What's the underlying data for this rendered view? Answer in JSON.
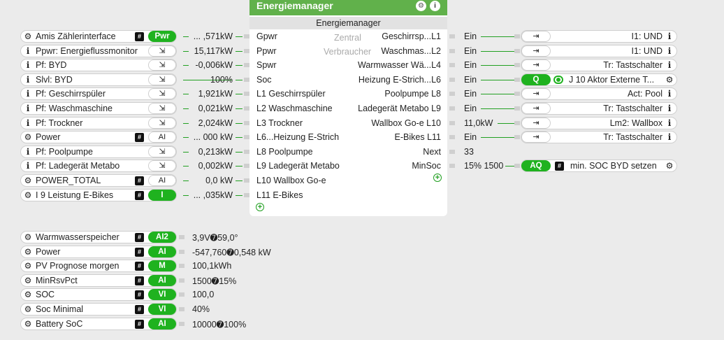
{
  "module": {
    "title": "Energiemanager",
    "subtitle": "Energiemanager",
    "inputs": [
      "Gpwr",
      "Ppwr",
      "Spwr",
      "Soc",
      "L1 Geschirrspüler",
      "L2 Waschmaschine",
      "L3 Trockner",
      "L6...Heizung  E-Strich",
      "L8 Poolpumpe",
      "L9 Ladegerät Metabo",
      "L10 Wallbox Go-e",
      "L11 E-Bikes"
    ],
    "ghost_labels": [
      "Zentral",
      "Verbraucher"
    ],
    "outputs": [
      "Geschirrsp...L1",
      "Waschmas...L2",
      "Warmwasser Wä...L4",
      "Heizung  E-Strich...L6",
      "Poolpumpe L8",
      "Ladegerät Metabo L9",
      "Wallbox Go-e L10",
      "E-Bikes L11",
      "Next",
      "MinSoc"
    ]
  },
  "left_rows": [
    {
      "icon": "gear-icon",
      "label": "Amis Zählerinterface",
      "btn": "Pwr",
      "btn_green": true,
      "hash": true,
      "value": "... ,571kW"
    },
    {
      "icon": "info-icon",
      "label": "Ppwr: Energieflussmonitor",
      "btn": "⇲",
      "btn_green": false,
      "hash": false,
      "value": "15,117kW"
    },
    {
      "icon": "info-icon",
      "label": "Pf: BYD",
      "btn": "⇲",
      "btn_green": false,
      "hash": false,
      "value": "-0,006kW"
    },
    {
      "icon": "info-icon",
      "label": "Slvl: BYD",
      "btn": "⇲",
      "btn_green": false,
      "hash": false,
      "value": "100%"
    },
    {
      "icon": "info-icon",
      "label": "Pf: Geschirrspüler",
      "btn": "⇲",
      "btn_green": false,
      "hash": false,
      "value": "1,921kW"
    },
    {
      "icon": "info-icon",
      "label": "Pf: Waschmaschine",
      "btn": "⇲",
      "btn_green": false,
      "hash": false,
      "value": "0,021kW"
    },
    {
      "icon": "info-icon",
      "label": "Pf: Trockner",
      "btn": "⇲",
      "btn_green": false,
      "hash": false,
      "value": "2,024kW"
    },
    {
      "icon": "gear-icon",
      "label": "Power",
      "btn": "AI",
      "btn_green": false,
      "hash": true,
      "value": "... 000 kW"
    },
    {
      "icon": "info-icon",
      "label": "Pf: Poolpumpe",
      "btn": "⇲",
      "btn_green": false,
      "hash": false,
      "value": "0,213kW"
    },
    {
      "icon": "info-icon",
      "label": "Pf: Ladegerät Metabo",
      "btn": "⇲",
      "btn_green": false,
      "hash": false,
      "value": "0,002kW"
    },
    {
      "icon": "gear-icon",
      "label": "POWER_TOTAL",
      "btn": "AI",
      "btn_green": false,
      "hash": true,
      "value": "0,0 kW"
    },
    {
      "icon": "gear-icon",
      "label": "I 9 Leistung E-Bikes",
      "btn": "I",
      "btn_green": true,
      "hash": true,
      "value": "... ,035kW"
    }
  ],
  "right_rows": [
    {
      "value": "Ein",
      "btn": "⇥",
      "btn_green": false,
      "label": "I1: UND",
      "icon": "info-icon"
    },
    {
      "value": "Ein",
      "btn": "⇥",
      "btn_green": false,
      "label": "I1: UND",
      "icon": "info-icon"
    },
    {
      "value": "Ein",
      "btn": "⇥",
      "btn_green": false,
      "label": "Tr: Tastschalter",
      "icon": "info-icon"
    },
    {
      "value": "Ein",
      "btn": "Q",
      "btn_green": true,
      "label": "J 10 Aktor Externe T...",
      "icon": "gear-icon",
      "toggle": true
    },
    {
      "value": "Ein",
      "btn": "⇥",
      "btn_green": false,
      "label": "Act: Pool",
      "icon": "info-icon"
    },
    {
      "value": "Ein",
      "btn": "⇥",
      "btn_green": false,
      "label": "Tr: Tastschalter",
      "icon": "info-icon"
    },
    {
      "value": "11,0kW",
      "btn": "⇥",
      "btn_green": false,
      "label": "Lm2: Wallbox",
      "icon": "info-icon"
    },
    {
      "value": "Ein",
      "btn": "⇥",
      "btn_green": false,
      "label": "Tr: Tastschalter",
      "icon": "info-icon"
    }
  ],
  "next_value": "33",
  "minsoc": {
    "value": "15% 1500",
    "btn": "AQ",
    "label": "min. SOC BYD setzen"
  },
  "bottom_rows": [
    {
      "label": "Warmwasserspeicher",
      "btn": "AI2",
      "value": "3,9V➐59,0°"
    },
    {
      "label": "Power",
      "btn": "AI",
      "value": "-547,760➐0,548 kW"
    },
    {
      "label": "PV Prognose morgen",
      "btn": "M",
      "value": "100,1kWh"
    },
    {
      "label": "MinRsvPct",
      "btn": "AI",
      "value": "1500➐15%"
    },
    {
      "label": "SOC",
      "btn": "VI",
      "value": "100,0"
    },
    {
      "label": "Soc Minimal",
      "btn": "VI",
      "value": "40%"
    },
    {
      "label": "Battery SoC",
      "btn": "AI",
      "value": "10000➐100%"
    }
  ]
}
